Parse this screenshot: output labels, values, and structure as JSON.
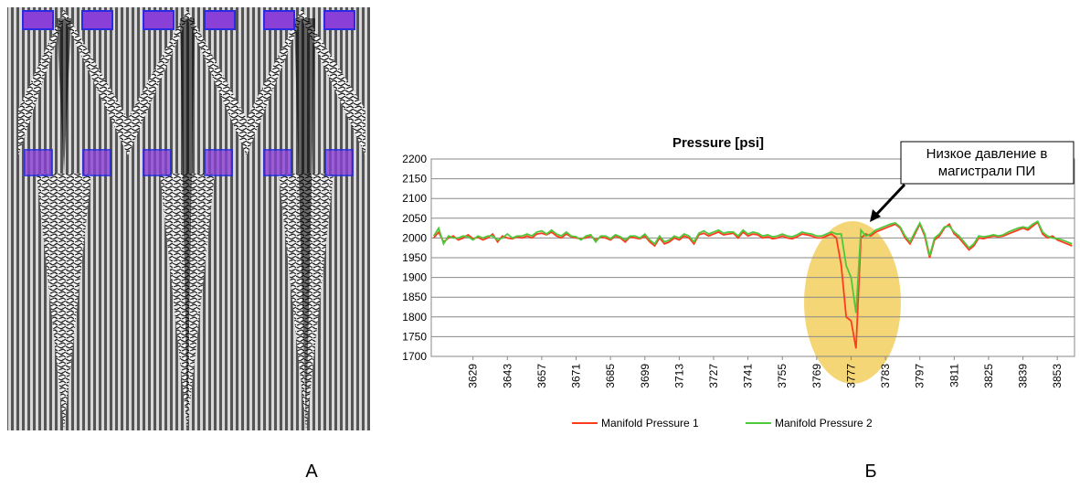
{
  "panel_labels": [
    "А",
    "Б"
  ],
  "chart_data": {
    "type": "line",
    "title": "Pressure [psi]",
    "annotation": [
      "Низкое давление в",
      "магистрали ПИ"
    ],
    "categories": [
      null,
      null,
      null,
      null,
      null,
      null,
      null,
      null,
      3629,
      null,
      null,
      null,
      null,
      null,
      null,
      3643,
      null,
      null,
      null,
      null,
      null,
      null,
      3657,
      null,
      null,
      null,
      null,
      null,
      null,
      3671,
      null,
      null,
      null,
      null,
      null,
      null,
      3685,
      null,
      null,
      null,
      null,
      null,
      null,
      3699,
      null,
      null,
      null,
      null,
      null,
      null,
      3713,
      null,
      null,
      null,
      null,
      null,
      null,
      3727,
      null,
      null,
      null,
      null,
      null,
      null,
      3741,
      null,
      null,
      null,
      null,
      null,
      null,
      3755,
      null,
      null,
      null,
      null,
      null,
      null,
      3769,
      null,
      null,
      null,
      null,
      null,
      null,
      3777,
      null,
      null,
      null,
      null,
      null,
      null,
      3783,
      null,
      null,
      null,
      null,
      null,
      null,
      3797,
      null,
      null,
      null,
      null,
      null,
      null,
      3811,
      null,
      null,
      null,
      null,
      null,
      null,
      3825,
      null,
      null,
      null,
      null,
      null,
      null,
      3839,
      null,
      null,
      null,
      null,
      null,
      null,
      3853,
      null,
      null,
      null
    ],
    "series": [
      {
        "name": "Manifold Pressure 1",
        "color": "#ff3b1f",
        "values": [
          2000,
          2015,
          1990,
          2000,
          2005,
          1995,
          2000,
          2008,
          1998,
          2002,
          1995,
          2000,
          2010,
          1990,
          2005,
          2000,
          1998,
          2003,
          2000,
          2005,
          2000,
          2010,
          2012,
          2008,
          2015,
          2005,
          2000,
          2010,
          2003,
          2000,
          1998,
          2000,
          2005,
          1995,
          2002,
          2000,
          1995,
          2005,
          2000,
          1990,
          2003,
          2000,
          1998,
          2005,
          1990,
          1980,
          2000,
          1985,
          1990,
          2000,
          1995,
          2005,
          2000,
          1985,
          2008,
          2012,
          2005,
          2010,
          2015,
          2008,
          2010,
          2012,
          2000,
          2015,
          2005,
          2010,
          2008,
          2000,
          2003,
          1998,
          2000,
          2005,
          2000,
          1998,
          2003,
          2010,
          2008,
          2005,
          2000,
          2000,
          2005,
          2010,
          2000,
          1930,
          1800,
          1790,
          1720,
          2000,
          2010,
          2005,
          2015,
          2020,
          2025,
          2030,
          2035,
          2025,
          2000,
          1985,
          2010,
          2035,
          2005,
          1950,
          1995,
          2005,
          2025,
          2035,
          2010,
          2000,
          1985,
          1970,
          1980,
          2000,
          1998,
          2002,
          2005,
          2003,
          2005,
          2010,
          2015,
          2020,
          2025,
          2020,
          2030,
          2040,
          2010,
          2000,
          2005,
          1995,
          1990,
          1985,
          1980
        ]
      },
      {
        "name": "Manifold Pressure 2",
        "color": "#4fc83c",
        "values": [
          2005,
          2025,
          1985,
          2005,
          2000,
          2000,
          2005,
          2003,
          1995,
          2005,
          2000,
          2005,
          2005,
          1995,
          2000,
          2010,
          2000,
          2005,
          2005,
          2010,
          2005,
          2015,
          2018,
          2010,
          2020,
          2010,
          2005,
          2015,
          2005,
          2003,
          1995,
          2005,
          2008,
          1990,
          2005,
          2005,
          1998,
          2008,
          2003,
          1995,
          2005,
          2005,
          2000,
          2010,
          1995,
          1985,
          2005,
          1990,
          1995,
          2005,
          2000,
          2010,
          2005,
          1990,
          2012,
          2018,
          2010,
          2015,
          2020,
          2012,
          2015,
          2015,
          2005,
          2020,
          2010,
          2015,
          2012,
          2005,
          2008,
          2003,
          2005,
          2010,
          2005,
          2003,
          2008,
          2015,
          2012,
          2010,
          2005,
          2005,
          2010,
          2015,
          2010,
          2010,
          1930,
          1900,
          1810,
          2020,
          2005,
          2010,
          2020,
          2025,
          2030,
          2035,
          2038,
          2028,
          2005,
          1990,
          2015,
          2038,
          2010,
          1955,
          2000,
          2010,
          2028,
          2030,
          2015,
          2005,
          1990,
          1975,
          1985,
          2005,
          2003,
          2005,
          2008,
          2005,
          2008,
          2015,
          2020,
          2025,
          2028,
          2025,
          2035,
          2042,
          2015,
          2005,
          2000,
          1998,
          1995,
          1990,
          1985
        ]
      }
    ],
    "ylim": [
      1700,
      2200
    ],
    "yticks": [
      1700,
      1750,
      1800,
      1850,
      1900,
      1950,
      2000,
      2050,
      2100,
      2150,
      2200
    ],
    "grid": true
  }
}
